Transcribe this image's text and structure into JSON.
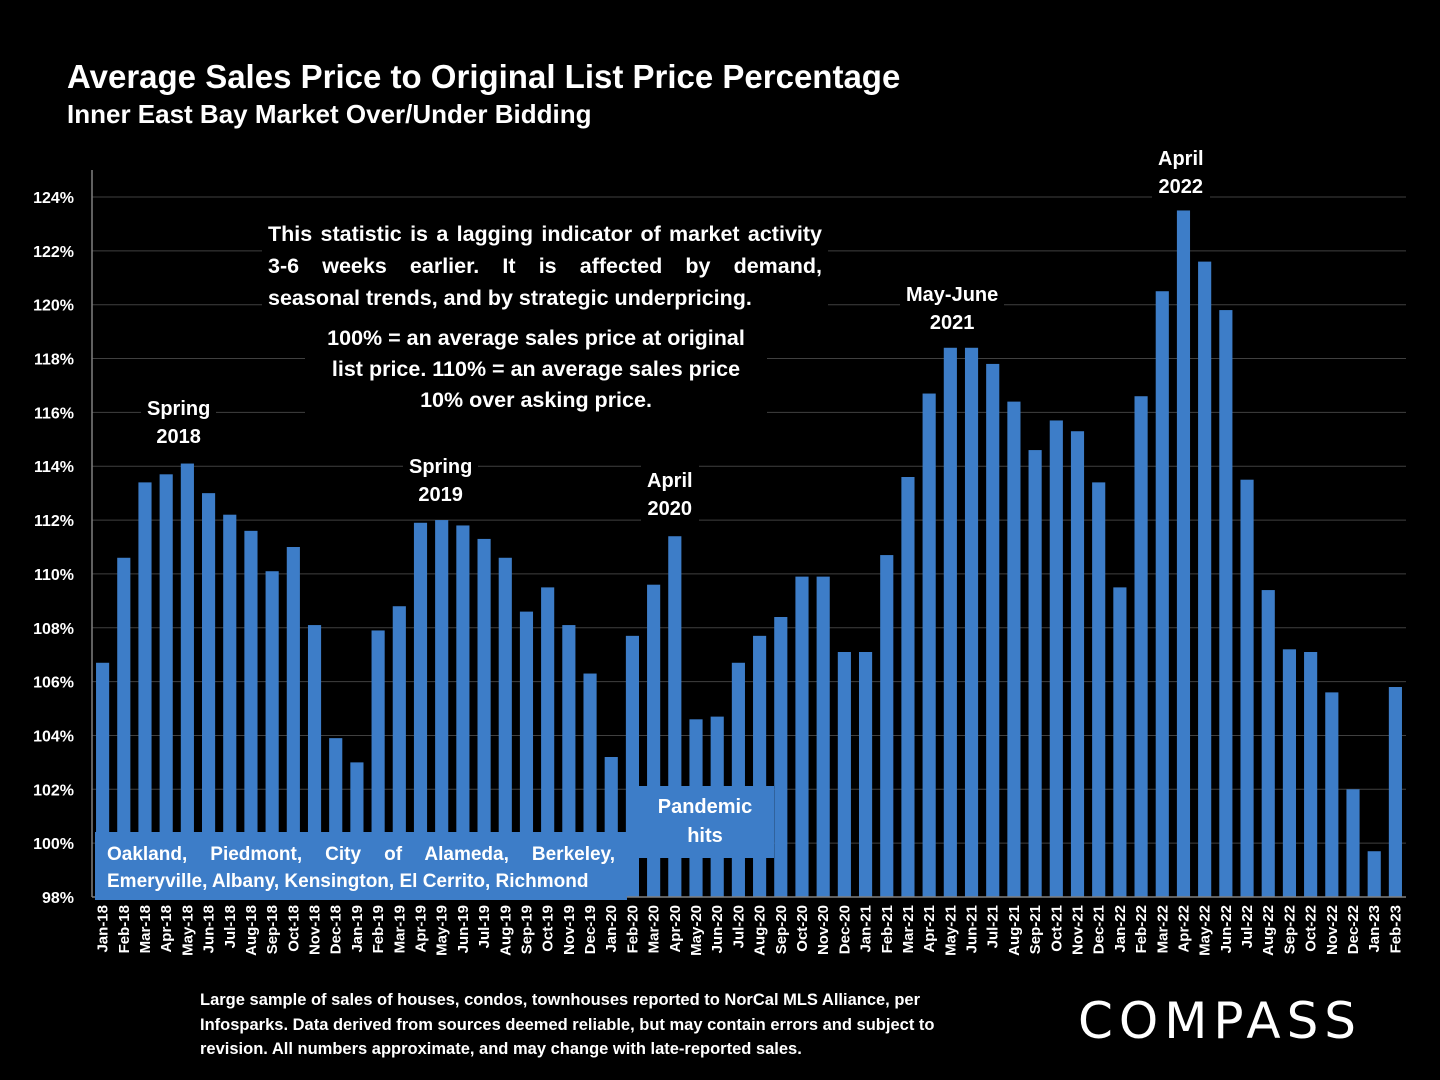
{
  "title": "Average Sales Price to Original List Price Percentage",
  "subtitle": "Inner East Bay Market Over/Under Bidding",
  "annotations": {
    "note1": "This statistic is a lagging indicator of market activity 3-6 weeks earlier. It is affected by demand, seasonal trends, and by strategic underpricing.",
    "note1_last": "seasonal trends, and by strategic underpricing.",
    "note1_main": "This statistic is a lagging indicator of market activity 3-6 weeks earlier. It is affected by demand,",
    "note2": "100% = an average sales price at original list price. 110% = an average sales price 10% over asking price.",
    "spring_2018_line1": "Spring",
    "spring_2018_line2": "2018",
    "spring_2019_line1": "Spring",
    "spring_2019_line2": "2019",
    "april_2020_line1": "April",
    "april_2020_line2": "2020",
    "may_june_2021_line1": "May-June",
    "may_june_2021_line2": "2021",
    "april_2022_line1": "April",
    "april_2022_line2": "2022",
    "pandemic_line1": "Pandemic",
    "pandemic_line2": "hits",
    "cities": "Oakland, Piedmont, City of Alameda, Berkeley, Emeryville, Albany, Kensington, El Cerrito, Richmond"
  },
  "footnote": "Large sample of sales of houses, condos, townhouses reported to NorCal MLS Alliance, per Infosparks. Data derived from sources deemed reliable, but may contain errors and subject to revision. All numbers approximate, and may change with late-reported sales.",
  "logo": "COMPASS",
  "colors": {
    "bar": "#3d7dc8",
    "background": "#000000",
    "grid": "#404040",
    "text": "#ffffff"
  },
  "chart_data": {
    "type": "bar",
    "title": "Average Sales Price to Original List Price Percentage",
    "subtitle": "Inner East Bay Market Over/Under Bidding",
    "xlabel": "",
    "ylabel": "",
    "ylim": [
      98,
      124
    ],
    "yticks": [
      "98%",
      "100%",
      "102%",
      "104%",
      "106%",
      "108%",
      "110%",
      "112%",
      "114%",
      "116%",
      "118%",
      "120%",
      "122%",
      "124%"
    ],
    "grid": true,
    "categories": [
      "Jan-18",
      "Feb-18",
      "Mar-18",
      "Apr-18",
      "May-18",
      "Jun-18",
      "Jul-18",
      "Aug-18",
      "Sep-18",
      "Oct-18",
      "Nov-18",
      "Dec-18",
      "Jan-19",
      "Feb-19",
      "Mar-19",
      "Apr-19",
      "May-19",
      "Jun-19",
      "Jul-19",
      "Aug-19",
      "Sep-19",
      "Oct-19",
      "Nov-19",
      "Dec-19",
      "Jan-20",
      "Feb-20",
      "Mar-20",
      "Apr-20",
      "May-20",
      "Jun-20",
      "Jul-20",
      "Aug-20",
      "Sep-20",
      "Oct-20",
      "Nov-20",
      "Dec-20",
      "Jan-21",
      "Feb-21",
      "Mar-21",
      "Apr-21",
      "May-21",
      "Jun-21",
      "Jul-21",
      "Aug-21",
      "Sep-21",
      "Oct-21",
      "Nov-21",
      "Dec-21",
      "Jan-22",
      "Feb-22",
      "Mar-22",
      "Apr-22",
      "May-22",
      "Jun-22",
      "Jul-22",
      "Aug-22",
      "Sep-22",
      "Oct-22",
      "Nov-22",
      "Dec-22",
      "Jan-23",
      "Feb-23"
    ],
    "values": [
      106.7,
      110.6,
      113.4,
      113.7,
      114.1,
      113.0,
      112.2,
      111.6,
      110.1,
      111.0,
      108.1,
      103.9,
      103.0,
      107.9,
      108.8,
      111.9,
      112.0,
      111.8,
      111.3,
      110.6,
      108.6,
      109.5,
      108.1,
      106.3,
      103.2,
      107.7,
      109.6,
      111.4,
      104.6,
      104.7,
      106.7,
      107.7,
      108.4,
      109.9,
      109.9,
      107.1,
      107.1,
      110.7,
      113.6,
      116.7,
      118.4,
      118.4,
      117.8,
      116.4,
      114.6,
      115.7,
      115.3,
      113.4,
      109.5,
      116.6,
      120.5,
      123.5,
      121.6,
      119.8,
      113.5,
      109.4,
      107.2,
      107.1,
      105.6,
      102.0,
      99.7,
      105.8
    ]
  }
}
